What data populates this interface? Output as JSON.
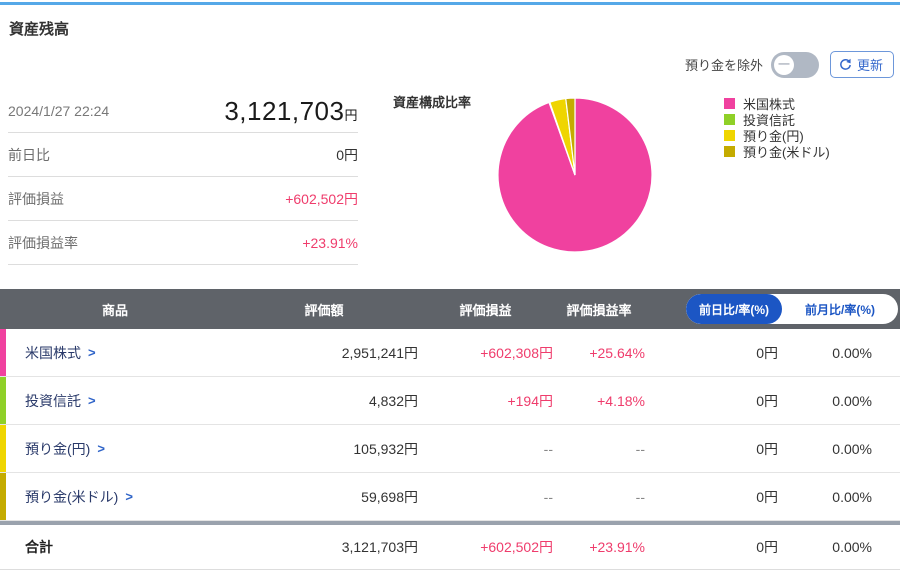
{
  "page": {
    "accent_color": "#55a8e8"
  },
  "header": {
    "title": "資産残高"
  },
  "controls": {
    "exclude_toggle_label": "預り金を除外",
    "exclude_toggle_state": "off",
    "refresh_label": "更新"
  },
  "summary": {
    "timestamp": "2024/1/27 22:24",
    "total_amount": "3,121,703",
    "total_unit": "円",
    "rows": [
      {
        "label": "前日比",
        "value": "0円",
        "color": "#333333"
      },
      {
        "label": "評価損益",
        "value": "+602,502円",
        "color": "#ef3c6c"
      },
      {
        "label": "評価損益率",
        "value": "+23.91%",
        "color": "#ef3c6c"
      }
    ]
  },
  "chart_data": {
    "type": "pie",
    "title": "資産構成比率",
    "labels": [
      "米国株式",
      "投資信託",
      "預り金(円)",
      "預り金(米ドル)"
    ],
    "values": [
      2951241,
      4832,
      105932,
      59698
    ],
    "percentages": [
      94.54,
      0.15,
      3.39,
      1.91
    ],
    "colors": [
      "#f0419f",
      "#8fd028",
      "#efd500",
      "#c4ab00"
    ],
    "start_angle_deg": 0,
    "direction": "clockwise",
    "legend_position": "right"
  },
  "table": {
    "headers": {
      "product": "商品",
      "amount": "評価額",
      "pl": "評価損益",
      "pl_rate": "評価損益率"
    },
    "period_toggle": {
      "selected": "前日比/率(%)",
      "unselected": "前月比/率(%)"
    },
    "positive_color": "#ef3c6c",
    "rows": [
      {
        "name": "米国株式",
        "color": "#f0419f",
        "amount": "2,951,241円",
        "pl": "+602,308円",
        "pl_rate": "+25.64%",
        "day_change": "0円",
        "day_rate": "0.00%",
        "pl_positive": true
      },
      {
        "name": "投資信託",
        "color": "#8fd028",
        "amount": "4,832円",
        "pl": "+194円",
        "pl_rate": "+4.18%",
        "day_change": "0円",
        "day_rate": "0.00%",
        "pl_positive": true
      },
      {
        "name": "預り金(円)",
        "color": "#efd500",
        "amount": "105,932円",
        "pl": "--",
        "pl_rate": "--",
        "day_change": "0円",
        "day_rate": "0.00%",
        "pl_positive": false
      },
      {
        "name": "預り金(米ドル)",
        "color": "#c4ab00",
        "amount": "59,698円",
        "pl": "--",
        "pl_rate": "--",
        "day_change": "0円",
        "day_rate": "0.00%",
        "pl_positive": false
      }
    ],
    "total": {
      "name": "合計",
      "amount": "3,121,703円",
      "pl": "+602,502円",
      "pl_rate": "+23.91%",
      "day_change": "0円",
      "day_rate": "0.00%"
    }
  }
}
